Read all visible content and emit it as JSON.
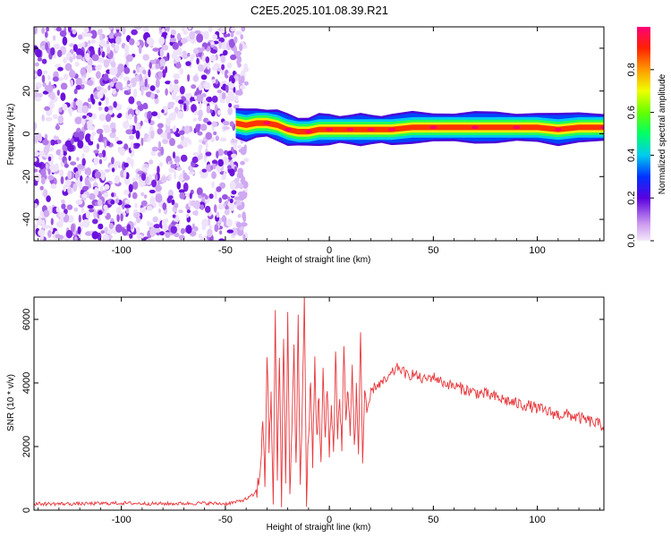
{
  "title": "C2E5.2025.101.08.39.R21",
  "chart_data": [
    {
      "type": "heatmap",
      "xlabel": "Height of straight line (km)",
      "ylabel": "Frequency (Hz)",
      "xlim": [
        -142,
        132
      ],
      "ylim": [
        -50,
        50
      ],
      "xticks": [
        -100,
        -50,
        0,
        50,
        100
      ],
      "xtick_labels": [
        "-100",
        "-50",
        "0",
        "50",
        "100"
      ],
      "yticks": [
        -40,
        -20,
        0,
        20,
        40
      ],
      "ytick_labels": [
        "-40",
        "-20",
        "0",
        "20",
        "40"
      ],
      "ridge": {
        "x": [
          -45,
          -40,
          -35,
          -30,
          -25,
          -20,
          -15,
          -10,
          -5,
          0,
          5,
          10,
          15,
          20,
          25,
          30,
          40,
          50,
          60,
          70,
          80,
          90,
          100,
          110,
          120,
          132
        ],
        "y": [
          5,
          4,
          5,
          5,
          4,
          2,
          1,
          1,
          2,
          2,
          2,
          2,
          2,
          2,
          2,
          2,
          3,
          3,
          3,
          3,
          3,
          3,
          3,
          2,
          3,
          3
        ]
      },
      "noise_region_x": [
        -142,
        -45
      ],
      "colorbar": {
        "label": "Normalized spectral amplitude",
        "range": [
          0,
          1
        ],
        "ticks": [
          0.0,
          0.2,
          0.4,
          0.6,
          0.8
        ],
        "tick_labels": [
          "0.0",
          "0.2",
          "0.4",
          "0.6",
          "0.8"
        ]
      }
    },
    {
      "type": "line",
      "xlabel": "Height of straight line (km)",
      "ylabel": "SNR (10 * v/v)",
      "xlim": [
        -142,
        132
      ],
      "ylim": [
        0,
        6700
      ],
      "xticks": [
        -100,
        -50,
        0,
        50,
        100
      ],
      "xtick_labels": [
        "-100",
        "-50",
        "0",
        "50",
        "100"
      ],
      "yticks": [
        0,
        2000,
        4000,
        6000
      ],
      "ytick_labels": [
        "0",
        "2000",
        "4000",
        "6000"
      ],
      "series": [
        {
          "color": "#e8383c",
          "x": [
            -142,
            -120,
            -100,
            -80,
            -60,
            -50,
            -45,
            -40,
            -36,
            -34,
            -33,
            -32,
            -31,
            -30,
            -29,
            -28,
            -27,
            -26,
            -25,
            -24,
            -23,
            -22,
            -21,
            -20,
            -19,
            -18,
            -17,
            -16,
            -15,
            -14,
            -13,
            -12,
            -11,
            -10,
            -9,
            -8,
            -7,
            -6,
            -5,
            -4,
            -3,
            -2,
            -1,
            0,
            1,
            2,
            3,
            4,
            5,
            6,
            7,
            8,
            9,
            10,
            11,
            12,
            13,
            14,
            15,
            16,
            17,
            18,
            20,
            22,
            25,
            28,
            30,
            33,
            35,
            38,
            40,
            45,
            50,
            55,
            60,
            65,
            70,
            75,
            80,
            85,
            90,
            95,
            100,
            105,
            110,
            115,
            120,
            125,
            132
          ],
          "y": [
            200,
            200,
            220,
            200,
            220,
            200,
            250,
            350,
            500,
            800,
            1500,
            3000,
            600,
            5000,
            2000,
            3500,
            300,
            6000,
            1200,
            4800,
            200,
            5500,
            900,
            6050,
            400,
            2800,
            5000,
            1300,
            5900,
            500,
            3500,
            6700,
            200,
            2500,
            3900,
            1400,
            4700,
            2300,
            3600,
            1500,
            4200,
            2200,
            3800,
            2000,
            3200,
            1800,
            5000,
            2400,
            3500,
            1900,
            5300,
            2600,
            4000,
            2200,
            4500,
            2000,
            3700,
            1800,
            5700,
            1500,
            3800,
            2900,
            3700,
            3900,
            4000,
            4100,
            4300,
            4500,
            4400,
            4200,
            4300,
            4100,
            4200,
            4000,
            3900,
            3800,
            3700,
            3650,
            3550,
            3450,
            3350,
            3300,
            3200,
            3100,
            3000,
            3000,
            2900,
            2800,
            2650
          ]
        }
      ]
    }
  ]
}
